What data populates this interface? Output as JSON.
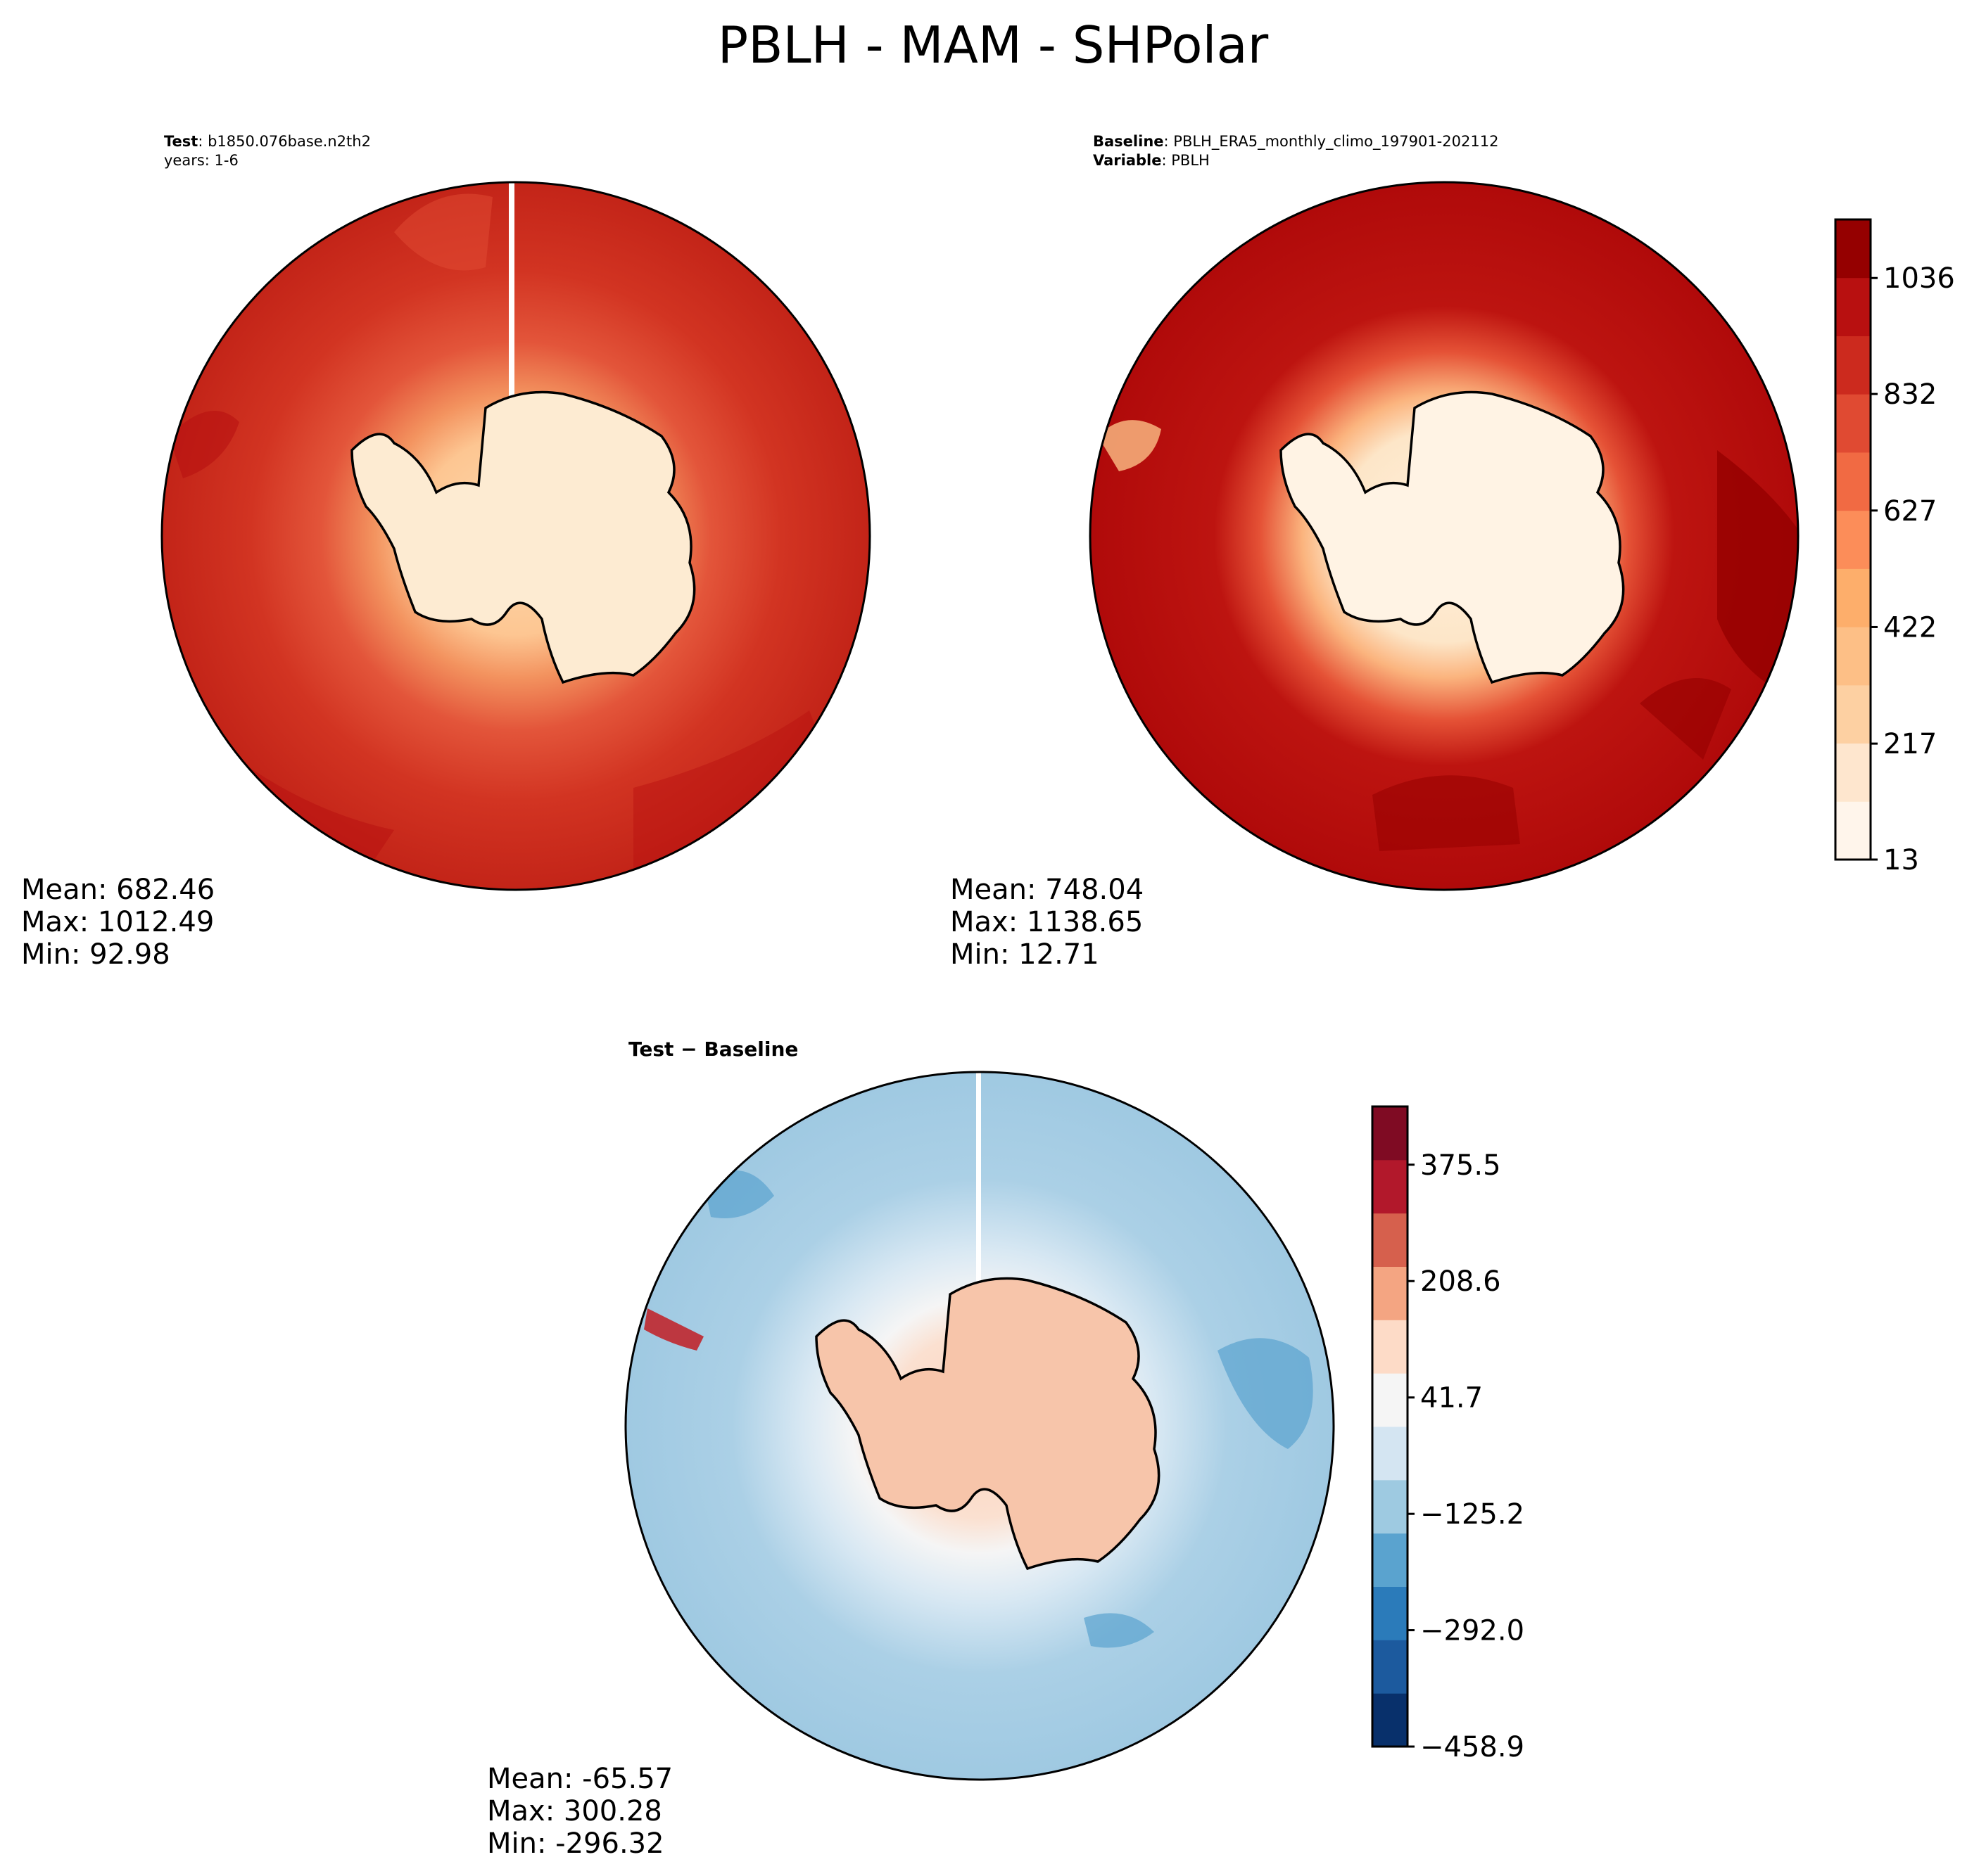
{
  "figure": {
    "title": "PBLH - MAM - SHPolar"
  },
  "panels": {
    "test": {
      "label_bold": "Test",
      "label_value": "b1850.076base.n2th2",
      "line2": "years: 1-6",
      "stats": {
        "mean": "Mean: 682.46",
        "max": "Max: 1012.49",
        "min": "Min: 92.98"
      }
    },
    "baseline": {
      "label_bold": "Baseline",
      "label_value": "PBLH_ERA5_monthly_climo_197901-202112",
      "line2_bold": "Variable",
      "line2_value": "PBLH",
      "stats": {
        "mean": "Mean: 748.04",
        "max": "Max: 1138.65",
        "min": "Min: 12.71"
      }
    },
    "diff": {
      "label": "Test − Baseline",
      "stats": {
        "mean": "Mean: -65.57",
        "max": "Max: 300.28",
        "min": "Min: -296.32"
      }
    }
  },
  "chart_data": [
    {
      "type": "heatmap",
      "name": "Test",
      "projection": "south polar stereographic",
      "mean": 682.46,
      "max": 1012.49,
      "min": 92.98,
      "colormap": "sequential orange-red (shared with Baseline)"
    },
    {
      "type": "heatmap",
      "name": "Baseline",
      "projection": "south polar stereographic",
      "mean": 748.04,
      "max": 1138.65,
      "min": 12.71,
      "colorbar": {
        "ticks": [
          "13",
          "217",
          "422",
          "627",
          "832",
          "1036"
        ],
        "tick_values": [
          13,
          217,
          422,
          627,
          832,
          1036
        ],
        "range": [
          13,
          1139
        ],
        "colors": [
          "#fff5eb",
          "#fee6ce",
          "#fdd0a2",
          "#fdbf86",
          "#fdae6b",
          "#fc8d59",
          "#f16a43",
          "#e04a32",
          "#cc2a1e",
          "#b81010",
          "#950000"
        ]
      }
    },
    {
      "type": "heatmap",
      "name": "Test − Baseline",
      "projection": "south polar stereographic",
      "mean": -65.57,
      "max": 300.28,
      "min": -296.32,
      "colorbar": {
        "ticks": [
          "−458.9",
          "−292.0",
          "−125.2",
          "41.7",
          "208.6",
          "375.5"
        ],
        "tick_values": [
          -458.9,
          -292.0,
          -125.2,
          41.7,
          208.6,
          375.5
        ],
        "range": [
          -458.9,
          459.0
        ],
        "colors": [
          "#08306b",
          "#1c5a9e",
          "#2b7bba",
          "#5aa3cf",
          "#9ecae1",
          "#d4e5f2",
          "#f5f5f5",
          "#fddbc7",
          "#f4a582",
          "#d6604d",
          "#b2182b",
          "#7f0b23"
        ]
      }
    }
  ]
}
